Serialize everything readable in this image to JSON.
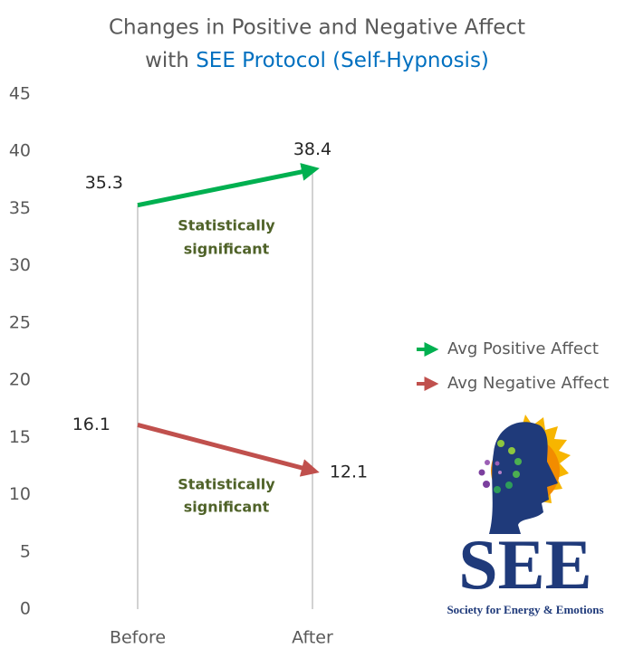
{
  "chart_data": {
    "type": "line",
    "title": {
      "line1": "Changes in Positive and Negative Affect",
      "line2_plain": "with",
      "line2_highlight": "SEE Protocol (Self-Hypnosis)"
    },
    "categories": [
      "Before",
      "After"
    ],
    "series": [
      {
        "name": "Avg Positive Affect",
        "color": "#00b050",
        "values": [
          35.3,
          38.4
        ]
      },
      {
        "name": "Avg Negative Affect",
        "color": "#c0504d",
        "values": [
          16.1,
          12.1
        ]
      }
    ],
    "ylim": [
      0,
      45
    ],
    "yticks": [
      0,
      5,
      10,
      15,
      20,
      25,
      30,
      35,
      40,
      45
    ],
    "grid": false,
    "legend": "right",
    "annotations": [
      [
        "Statistically",
        "significant"
      ],
      [
        "Statistically",
        "significant"
      ]
    ],
    "logo": {
      "name": "SEE",
      "tagline": "Society for Energy & Emotions"
    }
  }
}
